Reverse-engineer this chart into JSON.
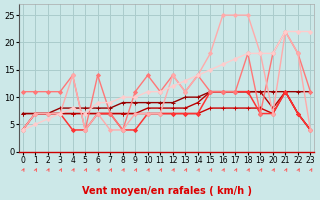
{
  "x": [
    0,
    1,
    2,
    3,
    4,
    5,
    6,
    7,
    8,
    9,
    10,
    11,
    12,
    13,
    14,
    15,
    16,
    17,
    18,
    19,
    20,
    21,
    22,
    23
  ],
  "series": [
    {
      "y": [
        4,
        7,
        7,
        7,
        7,
        7,
        7,
        7,
        7,
        7,
        7,
        7,
        7,
        7,
        7,
        8,
        8,
        8,
        8,
        8,
        7,
        11,
        7,
        4
      ],
      "color": "#cc0000",
      "lw": 1.0,
      "marker": "+",
      "ms": 3
    },
    {
      "y": [
        7,
        7,
        7,
        7,
        7,
        7,
        7,
        7,
        7,
        7,
        8,
        8,
        8,
        8,
        9,
        11,
        11,
        11,
        11,
        11,
        8,
        11,
        7,
        4
      ],
      "color": "#bb0000",
      "lw": 1.0,
      "marker": "+",
      "ms": 3
    },
    {
      "y": [
        7,
        7,
        7,
        8,
        8,
        8,
        8,
        8,
        9,
        9,
        9,
        9,
        9,
        10,
        10,
        11,
        11,
        11,
        11,
        11,
        11,
        11,
        11,
        11
      ],
      "color": "#990000",
      "lw": 1.0,
      "marker": "+",
      "ms": 3
    },
    {
      "y": [
        4,
        7,
        7,
        7,
        4,
        4,
        7,
        7,
        4,
        4,
        7,
        7,
        7,
        7,
        7,
        11,
        11,
        11,
        11,
        7,
        7,
        11,
        7,
        4
      ],
      "color": "#ff3333",
      "lw": 1.1,
      "marker": "D",
      "ms": 2
    },
    {
      "y": [
        11,
        11,
        11,
        11,
        14,
        4,
        14,
        7,
        4,
        11,
        14,
        11,
        14,
        11,
        14,
        11,
        11,
        11,
        18,
        7,
        18,
        22,
        18,
        11
      ],
      "color": "#ff7777",
      "lw": 1.0,
      "marker": "D",
      "ms": 2
    },
    {
      "y": [
        4,
        7,
        7,
        7,
        14,
        4,
        7,
        4,
        4,
        7,
        7,
        7,
        14,
        11,
        14,
        18,
        25,
        25,
        25,
        18,
        7,
        22,
        18,
        4
      ],
      "color": "#ffaaaa",
      "lw": 1.0,
      "marker": "D",
      "ms": 2
    },
    {
      "y": [
        4,
        5,
        6,
        7,
        8,
        7,
        9,
        9,
        10,
        10,
        11,
        11,
        12,
        13,
        14,
        15,
        16,
        17,
        18,
        18,
        18,
        22,
        22,
        22
      ],
      "color": "#ffcccc",
      "lw": 1.0,
      "marker": "D",
      "ms": 2
    }
  ],
  "xlabel": "Vent moyen/en rafales ( km/h )",
  "ylim": [
    0,
    27
  ],
  "xlim": [
    -0.3,
    23.3
  ],
  "yticks": [
    0,
    5,
    10,
    15,
    20,
    25
  ],
  "xticks": [
    0,
    1,
    2,
    3,
    4,
    5,
    6,
    7,
    8,
    9,
    10,
    11,
    12,
    13,
    14,
    15,
    16,
    17,
    18,
    19,
    20,
    21,
    22,
    23
  ],
  "bg_color": "#cce8e8",
  "grid_color": "#aacccc",
  "arrow_color": "#ff5555",
  "left_spine_color": "#555555",
  "xlabel_color": "#dd0000",
  "xlabel_fontsize": 7.0,
  "tick_fontsize": 5.5,
  "ytick_fontsize": 6.0
}
